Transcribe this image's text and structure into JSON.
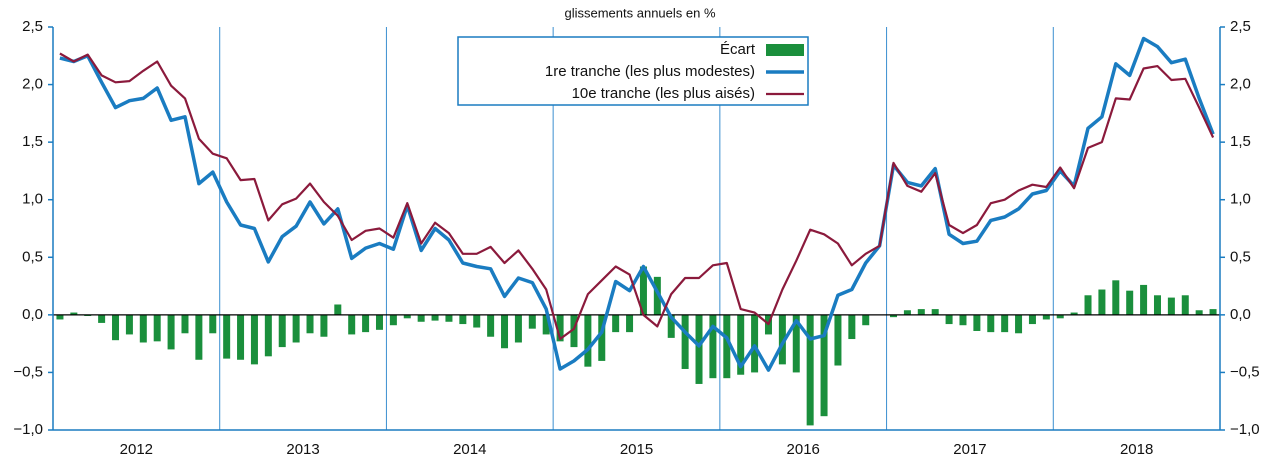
{
  "chart_data": {
    "type": "bar_line",
    "subtitle": "glissements annuels en %",
    "categories": [
      null,
      null,
      null,
      null,
      null,
      null,
      null,
      null,
      null,
      null,
      null,
      null,
      null,
      null,
      null,
      null,
      null,
      null,
      null,
      null,
      null,
      null,
      null,
      null,
      null,
      null,
      null,
      null,
      null,
      null,
      null,
      null,
      null,
      null,
      null,
      null,
      null,
      null,
      null,
      null,
      null,
      null,
      null,
      null,
      null,
      null,
      null,
      null,
      null,
      null,
      null,
      null,
      null,
      null,
      null,
      null,
      null,
      null,
      null,
      null,
      null,
      null,
      null,
      null,
      null,
      null,
      null,
      null,
      null,
      null,
      null,
      null,
      null,
      null,
      null,
      null,
      null,
      null,
      null,
      null,
      null,
      null,
      null,
      null
    ],
    "year_labels": [
      "2012",
      "2013",
      "2014",
      "2015",
      "2016",
      "2017",
      "2018"
    ],
    "series": [
      {
        "name": "Écart",
        "kind": "bar",
        "color": "#1a8f3c",
        "values": [
          -0.04,
          0.02,
          -0.01,
          -0.07,
          -0.22,
          -0.17,
          -0.24,
          -0.23,
          -0.3,
          -0.16,
          -0.39,
          -0.16,
          -0.38,
          -0.39,
          -0.43,
          -0.36,
          -0.28,
          -0.24,
          -0.16,
          -0.19,
          0.09,
          -0.17,
          -0.15,
          -0.13,
          -0.09,
          -0.03,
          -0.06,
          -0.05,
          -0.06,
          -0.08,
          -0.11,
          -0.19,
          -0.29,
          -0.24,
          -0.12,
          -0.17,
          -0.23,
          -0.28,
          -0.45,
          -0.4,
          -0.15,
          -0.15,
          0.42,
          0.33,
          -0.2,
          -0.47,
          -0.6,
          -0.55,
          -0.55,
          -0.52,
          -0.5,
          -0.17,
          -0.43,
          -0.5,
          -0.96,
          -0.88,
          -0.44,
          -0.21,
          -0.09,
          0.0,
          -0.02,
          0.04,
          0.05,
          0.05,
          -0.08,
          -0.09,
          -0.14,
          -0.15,
          -0.15,
          -0.16,
          -0.08,
          -0.04,
          -0.03,
          0.02,
          0.17,
          0.22,
          0.3,
          0.21,
          0.26,
          0.17,
          0.15,
          0.17,
          0.04,
          0.05
        ]
      },
      {
        "name": "1re tranche (les plus modestes)",
        "kind": "line",
        "color": "#1a7cc1",
        "values": [
          2.23,
          2.2,
          2.25,
          2.02,
          1.8,
          1.86,
          1.88,
          1.97,
          1.69,
          1.72,
          1.14,
          1.24,
          0.98,
          0.78,
          0.75,
          0.46,
          0.68,
          0.77,
          0.98,
          0.79,
          0.92,
          0.49,
          0.58,
          0.62,
          0.57,
          0.95,
          0.56,
          0.75,
          0.65,
          0.45,
          0.42,
          0.4,
          0.16,
          0.32,
          0.28,
          0.05,
          -0.47,
          -0.4,
          -0.3,
          -0.15,
          0.29,
          0.21,
          0.42,
          0.2,
          -0.02,
          -0.15,
          -0.27,
          -0.1,
          -0.2,
          -0.45,
          -0.27,
          -0.48,
          -0.25,
          -0.05,
          -0.21,
          -0.18,
          0.17,
          0.22,
          0.45,
          0.6,
          1.3,
          1.15,
          1.12,
          1.27,
          0.7,
          0.62,
          0.64,
          0.82,
          0.85,
          0.92,
          1.05,
          1.08,
          1.25,
          1.12,
          1.62,
          1.72,
          2.18,
          2.08,
          2.4,
          2.33,
          2.19,
          2.22,
          1.88,
          1.57
        ]
      },
      {
        "name": "10e tranche (les plus aisés)",
        "kind": "line",
        "color": "#8b1a3c",
        "values": [
          2.27,
          2.2,
          2.26,
          2.08,
          2.02,
          2.03,
          2.12,
          2.2,
          1.99,
          1.88,
          1.53,
          1.4,
          1.36,
          1.17,
          1.18,
          0.82,
          0.96,
          1.01,
          1.14,
          0.98,
          0.86,
          0.65,
          0.73,
          0.75,
          0.67,
          0.97,
          0.62,
          0.8,
          0.71,
          0.53,
          0.53,
          0.59,
          0.45,
          0.56,
          0.4,
          0.22,
          -0.21,
          -0.12,
          0.18,
          0.3,
          0.42,
          0.35,
          0.0,
          -0.1,
          0.18,
          0.32,
          0.32,
          0.43,
          0.45,
          0.05,
          0.02,
          -0.08,
          0.22,
          0.47,
          0.74,
          0.7,
          0.62,
          0.43,
          0.53,
          0.6,
          1.32,
          1.12,
          1.07,
          1.23,
          0.78,
          0.71,
          0.78,
          0.97,
          1.0,
          1.08,
          1.13,
          1.11,
          1.28,
          1.1,
          1.45,
          1.5,
          1.88,
          1.87,
          2.14,
          2.16,
          2.04,
          2.05,
          1.8,
          1.54
        ]
      }
    ],
    "ylim": [
      -1.0,
      2.5
    ],
    "yticks": [
      {
        "value": -1.0,
        "label": "−1,0"
      },
      {
        "value": -0.5,
        "label": "−0,5"
      },
      {
        "value": 0.0,
        "label": "0,0"
      },
      {
        "value": 0.5,
        "label": "0,5"
      },
      {
        "value": 1.0,
        "label": "1,0"
      },
      {
        "value": 1.5,
        "label": "1,5"
      },
      {
        "value": 2.0,
        "label": "2,0"
      },
      {
        "value": 2.5,
        "label": "2,5"
      }
    ],
    "y2lim": [
      -1.0,
      2.5
    ],
    "y2ticks": [
      {
        "value": -1.0,
        "label": "−1,0"
      },
      {
        "value": -0.5,
        "label": "−0,5"
      },
      {
        "value": 0.0,
        "label": "0,0"
      },
      {
        "value": 0.5,
        "label": "0,5"
      },
      {
        "value": 1.0,
        "label": "1,0"
      },
      {
        "value": 1.5,
        "label": "1,5"
      },
      {
        "value": 2.0,
        "label": "2,0"
      },
      {
        "value": 2.5,
        "label": "2,5"
      }
    ],
    "legend": "top-center"
  }
}
